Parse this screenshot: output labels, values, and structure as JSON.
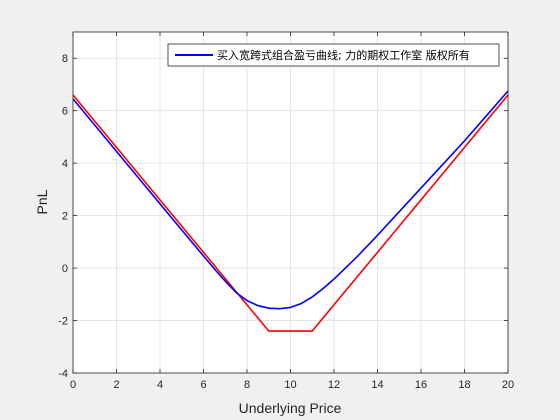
{
  "chart_data": {
    "type": "line",
    "title": "",
    "xlabel": "Underlying Price",
    "ylabel": "PnL",
    "xlim": [
      0,
      20
    ],
    "ylim": [
      -4,
      9
    ],
    "xticks": [
      0,
      2,
      4,
      6,
      8,
      10,
      12,
      14,
      16,
      18,
      20
    ],
    "yticks": [
      -4,
      -2,
      0,
      2,
      4,
      6,
      8
    ],
    "grid": true,
    "legend_position": "top-right",
    "colors": {
      "figure_bg": "#f0f0f0",
      "axes_bg": "#ffffff",
      "grid": "#dfdfdf",
      "axis": "#262626"
    },
    "series": [
      {
        "name": "买入宽跨式组合盈亏曲线; 力的期权工作室 版权所有",
        "color": "#0000ff",
        "in_legend": true,
        "x": [
          0,
          1,
          2,
          3,
          4,
          5,
          6,
          6.5,
          7,
          7.5,
          8,
          8.5,
          9,
          9.5,
          10,
          10.5,
          11,
          11.5,
          12,
          12.5,
          13,
          14,
          15,
          16,
          17,
          18,
          19,
          20
        ],
        "y": [
          6.45,
          5.45,
          4.45,
          3.45,
          2.45,
          1.45,
          0.46,
          -0.03,
          -0.5,
          -0.93,
          -1.24,
          -1.43,
          -1.53,
          -1.55,
          -1.5,
          -1.35,
          -1.1,
          -0.78,
          -0.42,
          -0.02,
          0.38,
          1.25,
          2.15,
          3.05,
          3.95,
          4.85,
          5.8,
          6.75
        ]
      },
      {
        "name": "",
        "color": "#ff0000",
        "in_legend": false,
        "x": [
          0,
          9,
          11,
          20
        ],
        "y": [
          6.6,
          -2.4,
          -2.4,
          6.6
        ]
      }
    ]
  }
}
